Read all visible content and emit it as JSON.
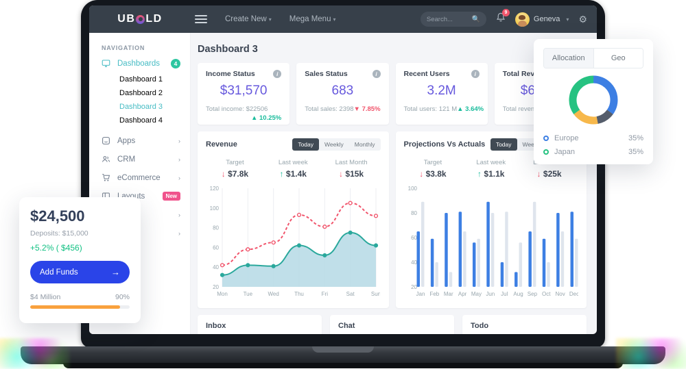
{
  "navbar": {
    "brand_left": "UB",
    "brand_right": "LD",
    "menus": [
      {
        "label": "Create New"
      },
      {
        "label": "Mega Menu"
      }
    ],
    "search_placeholder": "Search...",
    "notification_count": "9",
    "user_name": "Geneva"
  },
  "sidebar": {
    "section": "NAVIGATION",
    "items": [
      {
        "label": "Dashboards",
        "icon": "monitor-icon",
        "badge": "4"
      },
      {
        "label": "Dashboard 1"
      },
      {
        "label": "Dashboard 2"
      },
      {
        "label": "Dashboard 3"
      },
      {
        "label": "Dashboard 4"
      },
      {
        "label": "Apps",
        "icon": "apps-icon"
      },
      {
        "label": "CRM",
        "icon": "users-icon"
      },
      {
        "label": "eCommerce",
        "icon": "cart-icon"
      },
      {
        "label": "Layouts",
        "icon": "layout-icon",
        "badge": "New"
      },
      {
        "label": ""
      },
      {
        "label": ""
      }
    ]
  },
  "page": {
    "title": "Dashboard 3"
  },
  "stat_cards": [
    {
      "title": "Income Status",
      "value": "$31,570",
      "subtitle": "Total income: $22506",
      "delta": "10.25%",
      "delta_dir": "up"
    },
    {
      "title": "Sales Status",
      "value": "683",
      "subtitle": "Total sales: 2398",
      "delta": "7.85%",
      "delta_dir": "down"
    },
    {
      "title": "Recent Users",
      "value": "3.2M",
      "subtitle": "Total users: 121 M",
      "delta": "3.64%",
      "delta_dir": "up"
    },
    {
      "title": "Total Revenue",
      "value": "$6",
      "subtitle": "Total revenue:",
      "delta": "",
      "delta_dir": ""
    }
  ],
  "revenue_card": {
    "title": "Revenue",
    "tabs": [
      "Today",
      "Weekly",
      "Monthly"
    ],
    "active_tab": "Today",
    "stats": [
      {
        "label": "Target",
        "value": "$7.8k",
        "dir": "down"
      },
      {
        "label": "Last week",
        "value": "$1.4k",
        "dir": "up"
      },
      {
        "label": "Last Month",
        "value": "$15k",
        "dir": "down"
      }
    ]
  },
  "projections_card": {
    "title": "Projections Vs Actuals",
    "tabs": [
      "Today",
      "Weekly",
      "Monthly"
    ],
    "active_tab": "Today",
    "stats": [
      {
        "label": "Target",
        "value": "$3.8k",
        "dir": "down"
      },
      {
        "label": "Last week",
        "value": "$1.1k",
        "dir": "up"
      },
      {
        "label": "Last Month",
        "value": "$25k",
        "dir": "down"
      }
    ]
  },
  "allocation_card": {
    "tabs": [
      "Allocation",
      "Geo"
    ],
    "active_tab": "Allocation"
  },
  "wallet_card": {
    "balance": "$24,500",
    "deposits": "Deposits: $15,000",
    "change": "+5.2% ( $456)",
    "button_label": "Add Funds",
    "goal": "$4 Million",
    "progress_label": "90%",
    "progress_pct": 90,
    "progress_color": "#f9a13d"
  },
  "bottom_cards": [
    {
      "title": "Inbox"
    },
    {
      "title": "Chat"
    },
    {
      "title": "Todo"
    }
  ],
  "chart_data": [
    {
      "type": "line",
      "title": "Revenue",
      "x": [
        "Mon",
        "Tue",
        "Wed",
        "Thu",
        "Fri",
        "Sat",
        "Sun"
      ],
      "series": [
        {
          "name": "previous",
          "values": [
            42,
            58,
            65,
            93,
            81,
            105,
            92
          ],
          "style": "dashed",
          "color": "#f1556c"
        },
        {
          "name": "current",
          "values": [
            32,
            42,
            41,
            62,
            52,
            75,
            62
          ],
          "style": "area",
          "color": "#2aa89c",
          "fill": "#b9dbe7"
        }
      ],
      "ylim": [
        20,
        120
      ],
      "yticks": [
        20,
        40,
        60,
        80,
        100,
        120
      ],
      "grid": "vertical",
      "legend_position": "none"
    },
    {
      "type": "bar",
      "title": "Projections Vs Actuals",
      "x": [
        "Jan",
        "Feb",
        "Mar",
        "Apr",
        "May",
        "Jun",
        "Jul",
        "Aug",
        "Sep",
        "Oct",
        "Nov",
        "Dec"
      ],
      "series": [
        {
          "name": "actuals",
          "values": [
            65,
            59,
            80,
            81,
            56,
            89,
            40,
            32,
            65,
            59,
            80,
            81
          ],
          "color": "#3d7fe3"
        },
        {
          "name": "projections",
          "values": [
            89,
            40,
            32,
            65,
            59,
            80,
            81,
            56,
            89,
            40,
            65,
            59
          ],
          "color": "#dfe5ed"
        }
      ],
      "ylim": [
        20,
        100
      ],
      "yticks": [
        20,
        40,
        60,
        80,
        100
      ],
      "grid": "off",
      "legend_position": "none"
    },
    {
      "type": "donut",
      "title": "Allocation",
      "segments": [
        {
          "label": "Europe",
          "value": 35,
          "color": "#3d7fe3"
        },
        {
          "label": "",
          "value": 12,
          "color": "#555d6b"
        },
        {
          "label": "",
          "value": 18,
          "color": "#f7b84b"
        },
        {
          "label": "Japan",
          "value": 35,
          "color": "#26c281"
        }
      ],
      "legend": [
        {
          "label": "Europe",
          "value": "35%",
          "color": "#3d7fe3"
        },
        {
          "label": "Japan",
          "value": "35%",
          "color": "#26c281"
        }
      ]
    }
  ]
}
